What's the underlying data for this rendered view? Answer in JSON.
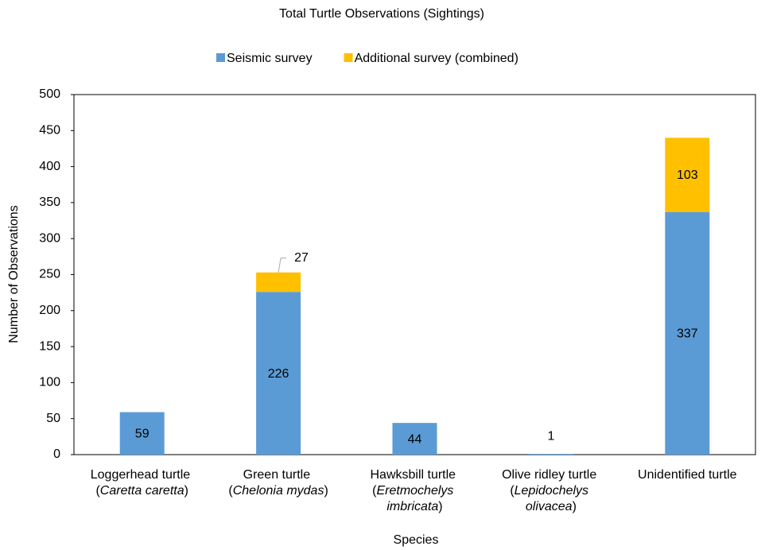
{
  "chart_data": {
    "type": "stacked-bar",
    "title": "Total Turtle Observations (Sightings)",
    "x_label": "Species",
    "y_label": "Number of Observations",
    "categories": [
      "Loggerhead turtle (Caretta caretta)",
      "Green turtle (Chelonia mydas)",
      "Hawksbill turtle (Eretmochelys imbricata)",
      "Olive ridley turtle (Lepidochelys olivacea)",
      "Unidentified turtle"
    ],
    "series": [
      {
        "name": "Seismic survey",
        "color": "#5b9bd5",
        "values": [
          59,
          226,
          44,
          1,
          337
        ]
      },
      {
        "name": "Additional survey (combined)",
        "color": "#ffc000",
        "values": [
          null,
          27,
          null,
          null,
          103
        ]
      }
    ],
    "ylim": [
      0,
      500
    ],
    "yticks": [
      0,
      50,
      100,
      150,
      200,
      250,
      300,
      350,
      400,
      450,
      500
    ],
    "legend": "top",
    "grid": false
  }
}
